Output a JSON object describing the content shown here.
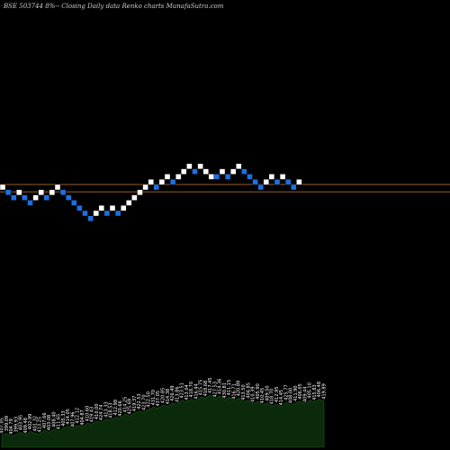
{
  "header": {
    "text": "BSE 503744  8%-- Closing Daily data  Renko  charts MunafaSutra.com"
  },
  "colors": {
    "background": "#000000",
    "up_brick": "#ffffff",
    "down_brick": "#1e6fe0",
    "level_line": "#c87a3c",
    "volume_fill": "#0b2a0b",
    "volume_stroke": "#1a5a1a"
  },
  "chart_data": {
    "type": "renko",
    "title": "BSE 503744  8%-- Closing Daily data  Renko  charts MunafaSutra.com",
    "bricks": [
      {
        "dir": "up",
        "level": 0
      },
      {
        "dir": "down",
        "level": -1
      },
      {
        "dir": "down",
        "level": -2
      },
      {
        "dir": "up",
        "level": -1
      },
      {
        "dir": "down",
        "level": -2
      },
      {
        "dir": "down",
        "level": -3
      },
      {
        "dir": "up",
        "level": -2
      },
      {
        "dir": "up",
        "level": -1
      },
      {
        "dir": "down",
        "level": -2
      },
      {
        "dir": "up",
        "level": -1
      },
      {
        "dir": "up",
        "level": 0
      },
      {
        "dir": "down",
        "level": -1
      },
      {
        "dir": "down",
        "level": -2
      },
      {
        "dir": "down",
        "level": -3
      },
      {
        "dir": "down",
        "level": -4
      },
      {
        "dir": "down",
        "level": -5
      },
      {
        "dir": "down",
        "level": -6
      },
      {
        "dir": "up",
        "level": -5
      },
      {
        "dir": "up",
        "level": -4
      },
      {
        "dir": "down",
        "level": -5
      },
      {
        "dir": "up",
        "level": -4
      },
      {
        "dir": "down",
        "level": -5
      },
      {
        "dir": "up",
        "level": -4
      },
      {
        "dir": "up",
        "level": -3
      },
      {
        "dir": "up",
        "level": -2
      },
      {
        "dir": "up",
        "level": -1
      },
      {
        "dir": "up",
        "level": 0
      },
      {
        "dir": "up",
        "level": 1
      },
      {
        "dir": "down",
        "level": 0
      },
      {
        "dir": "up",
        "level": 1
      },
      {
        "dir": "up",
        "level": 2
      },
      {
        "dir": "down",
        "level": 1
      },
      {
        "dir": "up",
        "level": 2
      },
      {
        "dir": "up",
        "level": 3
      },
      {
        "dir": "up",
        "level": 4
      },
      {
        "dir": "down",
        "level": 3
      },
      {
        "dir": "up",
        "level": 4
      },
      {
        "dir": "up",
        "level": 3
      },
      {
        "dir": "up",
        "level": 2
      },
      {
        "dir": "down",
        "level": 2
      },
      {
        "dir": "up",
        "level": 3
      },
      {
        "dir": "down",
        "level": 2
      },
      {
        "dir": "up",
        "level": 3
      },
      {
        "dir": "up",
        "level": 4
      },
      {
        "dir": "down",
        "level": 3
      },
      {
        "dir": "down",
        "level": 2
      },
      {
        "dir": "down",
        "level": 1
      },
      {
        "dir": "down",
        "level": 0
      },
      {
        "dir": "up",
        "level": 1
      },
      {
        "dir": "up",
        "level": 2
      },
      {
        "dir": "down",
        "level": 1
      },
      {
        "dir": "up",
        "level": 2
      },
      {
        "dir": "down",
        "level": 1
      },
      {
        "dir": "down",
        "level": 0
      },
      {
        "dir": "up",
        "level": 1
      }
    ],
    "reference_lines": [
      0,
      -1
    ],
    "volume_labels": [
      "407.05",
      "399.09",
      "404.79",
      "399.93",
      "403.95",
      "409.48",
      "402.99",
      "401.32",
      "413.25",
      "407.66",
      "403.08",
      "408.40",
      "411.65",
      "405.33",
      "414.05",
      "407.96",
      "412.12",
      "404.87",
      "410.60",
      "419.43",
      "410.00",
      "424.74",
      "413.33",
      "418.53",
      "412.98",
      "420.66",
      "414.25",
      "425.69",
      "419.37",
      "422.53",
      "423.70",
      "422.50",
      "431.70",
      "437.05",
      "420.85",
      "414.38",
      "426.49",
      "413.86",
      "423.51",
      "413.04",
      "418.70",
      "416.44",
      "415.75",
      "418.68",
      "417.45",
      "427.53",
      "414.36",
      "430.81",
      "411.15",
      "416.71",
      "420.89",
      "413.50",
      "404.85",
      "410.39",
      "405.90",
      "410.45",
      "409.50",
      "418.70",
      "412.95",
      "414.45",
      "425.77",
      "408.00",
      "411.90",
      "406.05",
      "409.44",
      "405.10",
      "415.83",
      "406.48",
      "419.89"
    ],
    "volume": [
      12,
      14,
      11,
      13,
      15,
      12,
      16,
      14,
      13,
      17,
      15,
      18,
      16,
      19,
      21,
      18,
      22,
      20,
      24,
      23,
      26,
      25,
      28,
      27,
      30,
      29,
      33,
      31,
      34,
      36,
      35,
      38,
      40,
      39,
      42,
      41,
      44,
      43,
      47,
      45,
      48,
      46,
      50,
      49,
      52,
      48,
      51,
      47,
      50,
      46,
      49,
      45,
      47,
      43,
      46,
      42,
      44,
      41,
      43,
      40,
      45,
      42,
      44,
      46,
      43,
      47,
      45,
      48,
      46
    ]
  }
}
